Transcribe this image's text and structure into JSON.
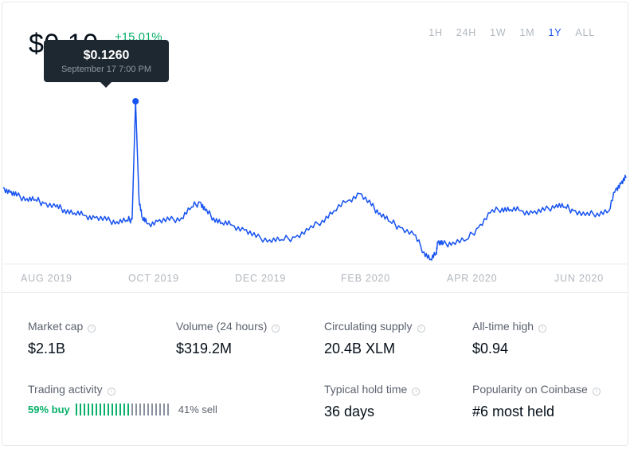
{
  "header": {
    "price": "$0.10",
    "change_pct": "+15.01%"
  },
  "time_ranges": [
    {
      "label": "1H",
      "active": false
    },
    {
      "label": "24H",
      "active": false
    },
    {
      "label": "1W",
      "active": false
    },
    {
      "label": "1M",
      "active": false
    },
    {
      "label": "1Y",
      "active": true
    },
    {
      "label": "ALL",
      "active": false
    }
  ],
  "tooltip": {
    "price": "$0.1260",
    "date": "September 17 7:00 PM"
  },
  "colors": {
    "line": "#1652f0",
    "buy": "#05b169",
    "sell_bars": "#8a919e",
    "active_range": "#1652f0"
  },
  "chart_data": {
    "type": "line",
    "xlabel": "",
    "ylabel": "",
    "x_tick_labels": [
      "AUG 2019",
      "OCT 2019",
      "DEC 2019",
      "FEB 2020",
      "APR 2020",
      "JUN 2020"
    ],
    "x": [
      "2019-07-01",
      "2019-07-05",
      "2019-07-09",
      "2019-07-15",
      "2019-07-20",
      "2019-07-25",
      "2019-08-01",
      "2019-08-06",
      "2019-08-12",
      "2019-08-18",
      "2019-08-24",
      "2019-08-31",
      "2019-09-06",
      "2019-09-12",
      "2019-09-15",
      "2019-09-17",
      "2019-09-19",
      "2019-09-21",
      "2019-09-24",
      "2019-09-30",
      "2019-10-07",
      "2019-10-14",
      "2019-10-20",
      "2019-10-25",
      "2019-10-28",
      "2019-11-02",
      "2019-11-07",
      "2019-11-13",
      "2019-11-20",
      "2019-11-27",
      "2019-12-05",
      "2019-12-12",
      "2019-12-20",
      "2019-12-28",
      "2020-01-05",
      "2020-01-12",
      "2020-01-20",
      "2020-01-27",
      "2020-02-03",
      "2020-02-08",
      "2020-02-14",
      "2020-02-20",
      "2020-02-28",
      "2020-03-05",
      "2020-03-09",
      "2020-03-12",
      "2020-03-13",
      "2020-03-16",
      "2020-03-22",
      "2020-03-30",
      "2020-04-06",
      "2020-04-13",
      "2020-04-20",
      "2020-04-25",
      "2020-05-01",
      "2020-05-08",
      "2020-05-15",
      "2020-05-22",
      "2020-05-27",
      "2020-06-01",
      "2020-06-08",
      "2020-06-15",
      "2020-06-22",
      "2020-06-26",
      "2020-06-29",
      "2020-07-02"
    ],
    "y": [
      0.0905,
      0.0885,
      0.087,
      0.086,
      0.0855,
      0.084,
      0.0825,
      0.0815,
      0.08,
      0.079,
      0.078,
      0.077,
      0.0765,
      0.077,
      0.0775,
      0.126,
      0.086,
      0.078,
      0.0755,
      0.0765,
      0.077,
      0.078,
      0.0825,
      0.0845,
      0.081,
      0.078,
      0.076,
      0.075,
      0.073,
      0.07,
      0.069,
      0.069,
      0.07,
      0.073,
      0.077,
      0.081,
      0.085,
      0.088,
      0.083,
      0.08,
      0.0765,
      0.074,
      0.071,
      0.064,
      0.061,
      0.063,
      0.068,
      0.067,
      0.068,
      0.069,
      0.074,
      0.08,
      0.082,
      0.0815,
      0.081,
      0.08,
      0.081,
      0.0835,
      0.0825,
      0.081,
      0.079,
      0.08,
      0.081,
      0.09,
      0.092,
      0.0945
    ],
    "highlight_point": {
      "x": "2019-09-17",
      "y": 0.126
    }
  },
  "stats": [
    {
      "label": "Market cap",
      "value": "$2.1B"
    },
    {
      "label": "Volume (24 hours)",
      "value": "$319.2M"
    },
    {
      "label": "Circulating supply",
      "value": "20.4B XLM"
    },
    {
      "label": "All-time high",
      "value": "$0.94"
    },
    {
      "label": "Trading activity",
      "value": ""
    },
    {
      "label": "Typical hold time",
      "value": "36 days"
    },
    {
      "label": "Popularity on Coinbase",
      "value": "#6 most held"
    }
  ],
  "trading": {
    "buy_pct": 59,
    "buy_label": "59% buy",
    "sell_label": "41% sell",
    "total_ticks": 24
  },
  "info_icon": "info-circle-icon"
}
